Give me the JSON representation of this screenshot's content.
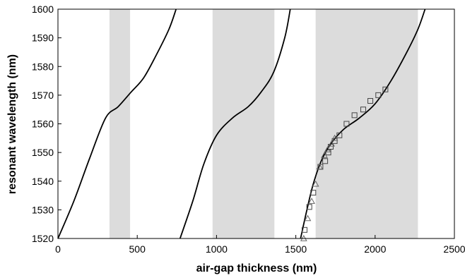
{
  "chart_data": {
    "type": "line",
    "title": "",
    "xlabel": "air-gap thickness (nm)",
    "ylabel": "resonant wavelength (nm)",
    "xlim": [
      0,
      2500
    ],
    "ylim": [
      1520,
      1600
    ],
    "x_ticks": [
      0,
      500,
      1000,
      1500,
      2000,
      2500
    ],
    "y_ticks": [
      1520,
      1530,
      1540,
      1550,
      1560,
      1570,
      1580,
      1590,
      1600
    ],
    "x_tick_labels": [
      "0",
      "500",
      "1000",
      "1500",
      "2000",
      "2500"
    ],
    "y_tick_labels": [
      "1520",
      "1530",
      "1540",
      "1550",
      "1560",
      "1570",
      "1580",
      "1590",
      "1600"
    ],
    "grid": false,
    "legend": "none",
    "shaded_bands": [
      {
        "x0": 325,
        "x1": 455
      },
      {
        "x0": 975,
        "x1": 1365
      },
      {
        "x0": 1625,
        "x1": 2270
      }
    ],
    "series": [
      {
        "kind": "curve",
        "points": [
          [
            0,
            1520
          ],
          [
            100,
            1533
          ],
          [
            200,
            1548
          ],
          [
            300,
            1562
          ],
          [
            380,
            1566
          ],
          [
            460,
            1571
          ],
          [
            540,
            1576
          ],
          [
            620,
            1584
          ],
          [
            700,
            1593
          ],
          [
            745,
            1600
          ]
        ]
      },
      {
        "kind": "curve",
        "points": [
          [
            770,
            1520
          ],
          [
            850,
            1533
          ],
          [
            920,
            1546
          ],
          [
            1000,
            1556
          ],
          [
            1100,
            1562
          ],
          [
            1200,
            1566
          ],
          [
            1280,
            1571
          ],
          [
            1360,
            1578
          ],
          [
            1430,
            1590
          ],
          [
            1465,
            1600
          ]
        ]
      },
      {
        "kind": "curve",
        "points": [
          [
            1530,
            1520
          ],
          [
            1570,
            1530
          ],
          [
            1610,
            1539
          ],
          [
            1660,
            1547
          ],
          [
            1720,
            1553
          ],
          [
            1800,
            1558
          ],
          [
            1900,
            1562
          ],
          [
            2000,
            1567
          ],
          [
            2100,
            1575
          ],
          [
            2200,
            1585
          ],
          [
            2270,
            1593
          ],
          [
            2315,
            1600
          ]
        ]
      },
      {
        "kind": "markers",
        "marker": "square",
        "points": [
          [
            1555,
            1523
          ],
          [
            1585,
            1531
          ],
          [
            1610,
            1536
          ],
          [
            1655,
            1545
          ],
          [
            1685,
            1547
          ],
          [
            1705,
            1550
          ],
          [
            1720,
            1552
          ],
          [
            1745,
            1554
          ],
          [
            1775,
            1556
          ],
          [
            1820,
            1560
          ],
          [
            1870,
            1563
          ],
          [
            1925,
            1565
          ],
          [
            1970,
            1568
          ],
          [
            2020,
            1570
          ],
          [
            2065,
            1572
          ]
        ]
      },
      {
        "kind": "markers",
        "marker": "triangle",
        "points": [
          [
            1550,
            1520
          ],
          [
            1575,
            1527
          ],
          [
            1600,
            1533
          ],
          [
            1625,
            1539
          ],
          [
            1650,
            1545
          ],
          [
            1680,
            1549
          ],
          [
            1700,
            1551
          ],
          [
            1725,
            1553
          ],
          [
            1745,
            1555
          ]
        ]
      }
    ]
  }
}
